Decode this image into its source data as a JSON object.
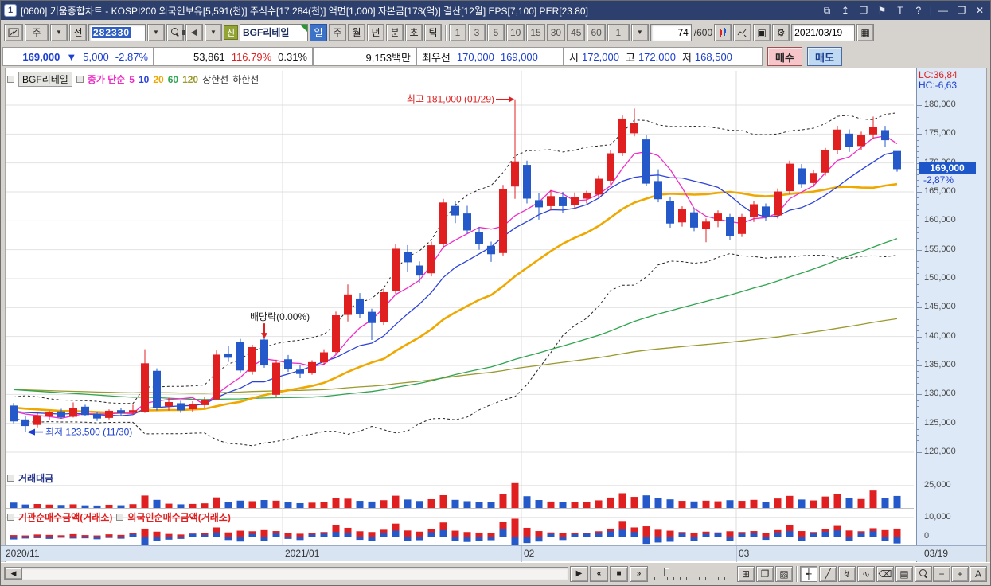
{
  "window": {
    "app_icon": "1",
    "title": "[0600] 키움종합차트 - KOSPI200 외국인보유[5,591(천)] 주식수[17,284(천)] 액면[1,000] 자본금[173(억)] 결산[12월] EPS[7,100] PER[23.80]",
    "controls": {
      "popout": "⧉",
      "align_top": "↥",
      "duplicate": "❐",
      "pin": "⚑",
      "text": "T",
      "help": "?",
      "minimize": "—",
      "restore": "❐",
      "close": "✕"
    }
  },
  "toolbar": {
    "market_select": "주",
    "dropdown_glyph": "▼",
    "prev_button": "전",
    "code_input": "282330",
    "stock_badge": "신",
    "stock_name": "BGF리테일",
    "periods": [
      "일",
      "주",
      "월",
      "년",
      "분",
      "초",
      "틱"
    ],
    "active_period": "일",
    "minutes": [
      "1",
      "3",
      "5",
      "10",
      "15",
      "30",
      "45",
      "60"
    ],
    "minute_select": "1",
    "bar_count": "74",
    "bar_total": "/600",
    "gear_glyph": "⚙",
    "save_glyph": "▣",
    "calendar_glyph": "▦",
    "date_value": "2021/03/19"
  },
  "info_bar": {
    "price": "169,000",
    "arrow": "▼",
    "change": "5,000",
    "change_pct": "-2.87%",
    "volume": "53,861",
    "volume_ratio": "116.79%",
    "turnover": "0.31%",
    "value": "9,153백만",
    "best_label": "최우선",
    "best_ask": "170,000",
    "best_bid": "169,000",
    "open_label": "시",
    "open": "172,000",
    "high_label": "고",
    "high": "172,000",
    "low_label": "저",
    "low": "168,500",
    "buy_button": "매수",
    "sell_button": "매도"
  },
  "legend": {
    "stock": "BGF리테일",
    "ma_title": "종가 단순",
    "ma_items": [
      {
        "label": "5",
        "color": "#f station"
      },
      {
        "label": "10",
        "color": "#2d43d8"
      },
      {
        "label": "20",
        "color": "#efa800"
      },
      {
        "label": "60",
        "color": "#2fa44f"
      },
      {
        "label": "120",
        "color": "#9a9a2e"
      }
    ],
    "band_upper": "상한선",
    "band_lower": "하한선",
    "ma_title_color": "#f02cc8"
  },
  "right_axis": {
    "lc": "LC:36,84",
    "hc": "HC:-6,63",
    "current_price": "169,000",
    "current_pct": "-2,87%",
    "volume_grid_label": "25,000",
    "netbuy_grid_label": "10,000",
    "netbuy_zero_label": "0"
  },
  "panels": {
    "volume_title": "거래대금",
    "netbuy_inst_title": "기관순매수금액(거래소)",
    "netbuy_foreign_title": "외국인순매수금액(거래소)"
  },
  "bottom_toolbar": {
    "scroll_left": "◀",
    "play": "▶",
    "rewind": "«",
    "stop": "■",
    "forward": "»",
    "icons": {
      "grid_window": "⊞",
      "cascade": "❐",
      "chart_area": "▨",
      "crosshair_tool": "┽",
      "trend_tool": "╱",
      "zigzag_arrow_tool": "↯",
      "wave_tool": "∿",
      "eraser_tool": "⌫",
      "chart_image": "▤",
      "minus": "−",
      "plus": "+",
      "font": "A"
    }
  },
  "chart_data": {
    "type": "candlestick",
    "title": "BGF리테일 일봉차트",
    "y_axis": {
      "min": 120000,
      "max": 180000,
      "step": 5000
    },
    "price_unit": 1000,
    "colors": {
      "up": "#e02020",
      "down": "#2558c8",
      "ma5": "#f02cc8",
      "ma10": "#2d43d8",
      "ma20": "#efa800",
      "ma60": "#2fa44f",
      "ma120": "#9a9a2e",
      "band": "#222222",
      "grid": "#e2e2e2",
      "vgrid": "#dcdcdc"
    },
    "ma_periods": [
      5,
      10,
      20,
      60,
      120
    ],
    "band_window": 20,
    "band_sigma": 2,
    "month_ticks": [
      {
        "index": 0,
        "label": "2020/11",
        "line": false
      },
      {
        "index": 23,
        "label": "2021/01",
        "line": true
      },
      {
        "index": 43,
        "label": "02",
        "line": true
      },
      {
        "index": 61,
        "label": "03",
        "line": true
      }
    ],
    "end_tick_label": "03/19",
    "annotations": [
      {
        "type": "high",
        "text": "최고 181,000 (01/29)",
        "index": 42,
        "price": 181.0,
        "color": "#e02020"
      },
      {
        "type": "exdiv",
        "text": "배당락(0.00%)",
        "index": 21,
        "color": "#222222",
        "arrow_color": "#e02020"
      },
      {
        "type": "low",
        "text": "최저 123,500 (11/30)",
        "index": 1,
        "price": 123.5,
        "color": "#1c3fd0"
      }
    ],
    "prehistory_closes": [
      133.5,
      134.2,
      133.8,
      134.6,
      135.0,
      134.4,
      133.9,
      134.8,
      135.2,
      134.6,
      134.0,
      133.4,
      133.9,
      134.5,
      133.8,
      133.2,
      132.6,
      133.1,
      133.6,
      132.9,
      132.2,
      131.8,
      132.4,
      132.9,
      132.1,
      131.6,
      131.0,
      131.5,
      132.0,
      131.3,
      130.8,
      130.2,
      130.7,
      131.2,
      130.5,
      129.9,
      129.4,
      129.8,
      130.3,
      129.6,
      129.0,
      128.5,
      129.0,
      129.5,
      128.8,
      128.2,
      127.6,
      128.1,
      128.6,
      127.9,
      127.3,
      126.8,
      127.3,
      127.8,
      127.1,
      126.6,
      127.0,
      127.5,
      127.9,
      127.6
    ],
    "candles": [
      [
        128.0,
        128.5,
        125.0,
        125.4
      ],
      [
        125.6,
        126.2,
        123.5,
        124.6
      ],
      [
        124.8,
        126.8,
        124.3,
        126.3
      ],
      [
        126.4,
        127.2,
        125.6,
        126.9
      ],
      [
        127.0,
        127.5,
        125.8,
        126.1
      ],
      [
        126.2,
        128.6,
        126.0,
        127.6
      ],
      [
        127.8,
        128.2,
        126.2,
        126.5
      ],
      [
        126.6,
        127.0,
        125.4,
        125.9
      ],
      [
        126.0,
        127.4,
        125.7,
        127.1
      ],
      [
        127.2,
        127.6,
        126.2,
        126.8
      ],
      [
        126.9,
        128.2,
        126.5,
        127.2
      ],
      [
        127.0,
        137.8,
        126.8,
        135.3
      ],
      [
        134.0,
        134.5,
        127.2,
        127.8
      ],
      [
        128.0,
        129.4,
        127.2,
        128.6
      ],
      [
        128.4,
        128.9,
        126.8,
        127.3
      ],
      [
        127.5,
        128.8,
        126.9,
        128.3
      ],
      [
        128.2,
        129.5,
        127.6,
        129.0
      ],
      [
        129.2,
        137.6,
        129.0,
        136.8
      ],
      [
        137.0,
        138.4,
        135.6,
        136.4
      ],
      [
        139.0,
        139.6,
        133.8,
        134.2
      ],
      [
        134.0,
        138.6,
        133.4,
        138.1
      ],
      [
        139.4,
        139.8,
        134.6,
        135.2
      ],
      [
        130.0,
        136.0,
        129.6,
        135.4
      ],
      [
        136.0,
        136.8,
        133.9,
        134.4
      ],
      [
        134.2,
        135.0,
        132.8,
        133.6
      ],
      [
        133.8,
        135.9,
        133.4,
        135.5
      ],
      [
        135.6,
        137.8,
        135.0,
        137.2
      ],
      [
        137.4,
        144.3,
        137.0,
        143.6
      ],
      [
        143.8,
        149.0,
        142.6,
        147.2
      ],
      [
        146.5,
        147.5,
        143.2,
        144.0
      ],
      [
        144.2,
        144.8,
        139.4,
        142.4
      ],
      [
        142.6,
        148.3,
        142.0,
        147.6
      ],
      [
        148.0,
        155.9,
        147.4,
        155.1
      ],
      [
        154.6,
        155.8,
        151.2,
        152.9
      ],
      [
        152.2,
        153.0,
        149.3,
        150.6
      ],
      [
        151.0,
        156.4,
        150.4,
        155.7
      ],
      [
        156.0,
        163.8,
        155.2,
        163.1
      ],
      [
        162.5,
        163.4,
        159.6,
        161.0
      ],
      [
        161.2,
        162.6,
        157.8,
        158.4
      ],
      [
        158.0,
        158.9,
        155.0,
        156.1
      ],
      [
        155.6,
        156.4,
        152.9,
        154.3
      ],
      [
        154.5,
        166.2,
        154.0,
        165.4
      ],
      [
        166.0,
        181.0,
        163.8,
        170.2
      ],
      [
        169.6,
        170.4,
        163.0,
        163.9
      ],
      [
        163.5,
        164.8,
        160.2,
        162.4
      ],
      [
        162.6,
        165.3,
        161.8,
        164.2
      ],
      [
        164.0,
        165.0,
        161.4,
        162.6
      ],
      [
        162.8,
        164.9,
        162.0,
        164.1
      ],
      [
        163.9,
        165.2,
        163.0,
        164.8
      ],
      [
        164.6,
        167.8,
        164.0,
        167.2
      ],
      [
        167.0,
        172.3,
        166.2,
        171.6
      ],
      [
        171.8,
        178.2,
        171.2,
        177.6
      ],
      [
        175.2,
        179.4,
        174.6,
        176.8
      ],
      [
        174.0,
        174.8,
        166.0,
        166.5
      ],
      [
        166.8,
        168.9,
        163.2,
        163.8
      ],
      [
        163.4,
        164.2,
        158.8,
        159.6
      ],
      [
        159.8,
        162.5,
        159.0,
        161.9
      ],
      [
        161.4,
        162.0,
        158.2,
        158.9
      ],
      [
        158.6,
        160.4,
        156.3,
        159.8
      ],
      [
        160.0,
        161.8,
        158.9,
        161.2
      ],
      [
        160.6,
        161.2,
        156.6,
        157.4
      ],
      [
        157.8,
        161.2,
        157.2,
        160.6
      ],
      [
        160.8,
        163.4,
        159.8,
        162.8
      ],
      [
        162.4,
        163.0,
        159.9,
        160.8
      ],
      [
        161.0,
        165.6,
        160.4,
        165.0
      ],
      [
        165.2,
        170.4,
        164.6,
        169.8
      ],
      [
        169.0,
        169.8,
        165.7,
        166.4
      ],
      [
        166.6,
        168.8,
        165.8,
        168.2
      ],
      [
        168.4,
        172.6,
        167.8,
        172.1
      ],
      [
        172.3,
        176.4,
        171.6,
        175.7
      ],
      [
        175.0,
        175.8,
        171.9,
        172.8
      ],
      [
        173.0,
        175.4,
        172.2,
        174.7
      ],
      [
        175.0,
        178.0,
        174.2,
        176.2
      ],
      [
        175.6,
        176.4,
        172.8,
        174.0
      ],
      [
        172.0,
        172.0,
        168.5,
        169.0
      ]
    ],
    "volume": [
      6.5,
      4.2,
      4.8,
      4.1,
      3.6,
      4.4,
      3.2,
      3.0,
      3.9,
      3.3,
      4.6,
      15.0,
      9.8,
      5.2,
      4.4,
      4.9,
      5.6,
      12.8,
      7.4,
      8.9,
      8.2,
      9.6,
      8.8,
      6.9,
      5.8,
      6.4,
      7.2,
      12.4,
      11.2,
      8.6,
      7.8,
      9.4,
      14.8,
      10.2,
      8.4,
      10.6,
      15.4,
      9.8,
      8.2,
      7.4,
      7.0,
      16.8,
      30.0,
      14.2,
      9.6,
      7.8,
      6.9,
      7.4,
      7.0,
      9.2,
      12.6,
      17.8,
      13.4,
      15.2,
      11.8,
      10.4,
      8.6,
      7.9,
      8.8,
      8.1,
      9.4,
      8.6,
      9.8,
      7.6,
      11.4,
      14.6,
      10.2,
      9.1,
      13.8,
      16.4,
      11.6,
      10.8,
      21.0,
      12.4,
      14.5
    ],
    "volume_axis": {
      "grid_value": 25.0,
      "unit": "백만"
    },
    "netbuy_institution": [
      0.8,
      0.6,
      1.1,
      0.9,
      0.7,
      1.3,
      0.8,
      0.6,
      1.2,
      0.9,
      1.8,
      4.2,
      2.6,
      1.4,
      1.1,
      1.6,
      1.9,
      4.8,
      2.2,
      3.1,
      2.8,
      3.4,
      2.9,
      1.8,
      1.5,
      1.9,
      2.4,
      6.2,
      4.6,
      2.8,
      2.4,
      3.6,
      6.8,
      3.2,
      2.6,
      4.1,
      7.4,
      3.1,
      2.4,
      2.1,
      1.9,
      7.8,
      9.4,
      4.6,
      2.9,
      2.2,
      1.8,
      2.1,
      1.9,
      2.8,
      4.2,
      8.2,
      4.8,
      5.4,
      3.6,
      3.1,
      2.4,
      2.1,
      2.6,
      2.2,
      2.8,
      2.4,
      2.9,
      1.9,
      3.4,
      6.1,
      2.9,
      2.4,
      4.1,
      5.6,
      3.2,
      2.8,
      4.4,
      3.4,
      4.2
    ],
    "netbuy_foreign": [
      -1.5,
      -1.0,
      -0.8,
      -1.2,
      -0.6,
      -1.0,
      -0.9,
      -1.4,
      -0.7,
      -1.1,
      1.2,
      -11.0,
      -2.4,
      -1.6,
      -1.2,
      1.4,
      1.0,
      2.2,
      -1.8,
      -2.6,
      1.4,
      -2.2,
      1.6,
      -1.2,
      -1.8,
      1.1,
      1.5,
      2.4,
      2.0,
      -1.7,
      -2.3,
      1.8,
      3.1,
      -2.2,
      -1.9,
      2.3,
      3.4,
      -2.1,
      -2.8,
      -2.2,
      -1.9,
      3.8,
      -4.2,
      -3.4,
      -2.6,
      1.4,
      -1.8,
      1.2,
      1.5,
      2.1,
      2.8,
      3.6,
      2.4,
      -3.8,
      -3.1,
      -2.7,
      1.6,
      -2.1,
      1.4,
      1.8,
      -2.4,
      1.5,
      2.0,
      -1.7,
      2.2,
      2.9,
      -2.3,
      1.6,
      2.6,
      3.2,
      -2.5,
      1.9,
      2.8,
      -2.2,
      -3.6
    ],
    "netbuy_axis": {
      "grid_value": 10.0,
      "zero_value": 0
    }
  }
}
